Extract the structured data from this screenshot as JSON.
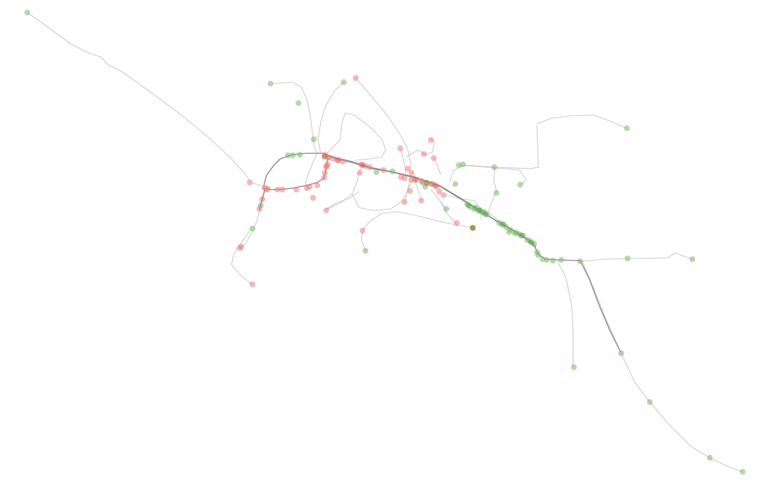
{
  "colors": {
    "background": "#ffffff",
    "route_faint": "#b9b9b9",
    "route_main": "#8a8a8a",
    "stop_green": "#7fb870",
    "stop_green_dense": "#4e9a43",
    "stop_red": "#ef7f7f",
    "stop_red_dense": "#e05757",
    "stop_olive": "#8a7d3a"
  },
  "legend": {
    "categories": [
      "green",
      "red",
      "olive"
    ]
  }
}
